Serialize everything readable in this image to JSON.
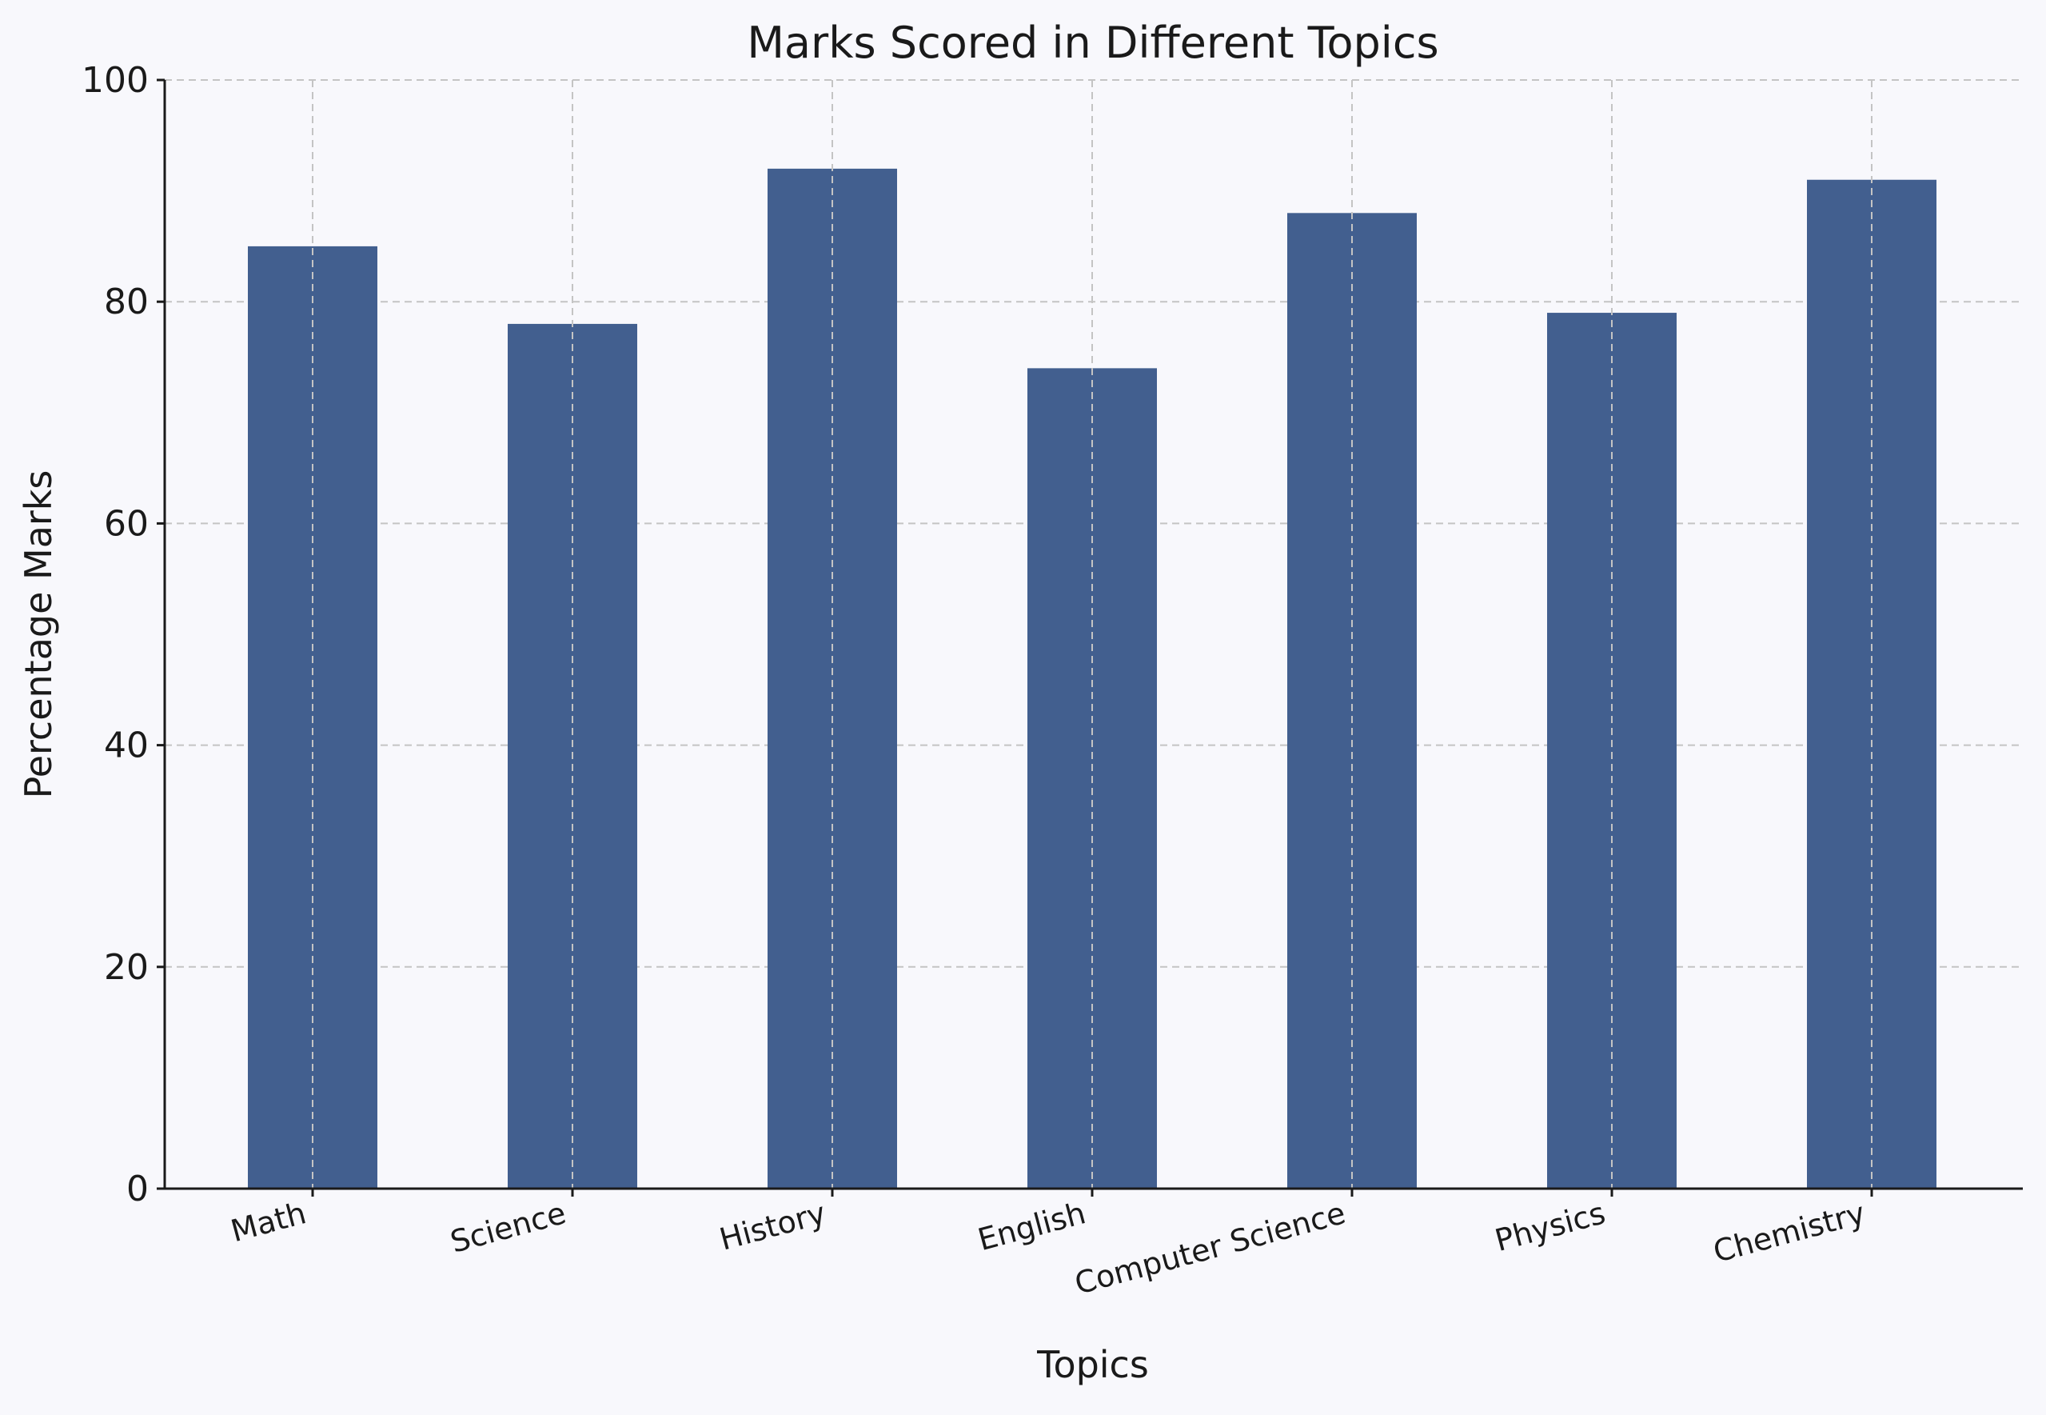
{
  "chart_data": {
    "type": "bar",
    "title": "Marks Scored in Different Topics",
    "xlabel": "Topics",
    "ylabel": "Percentage Marks",
    "categories": [
      "Math",
      "Science",
      "History",
      "English",
      "Computer Science",
      "Physics",
      "Chemistry"
    ],
    "values": [
      85,
      78,
      92,
      74,
      88,
      79,
      91
    ],
    "ylim": [
      0,
      100
    ],
    "yticks": [
      0,
      20,
      40,
      60,
      80,
      100
    ],
    "grid": true,
    "bar_color": "#425f8f",
    "background_color": "#f8f8fc"
  }
}
